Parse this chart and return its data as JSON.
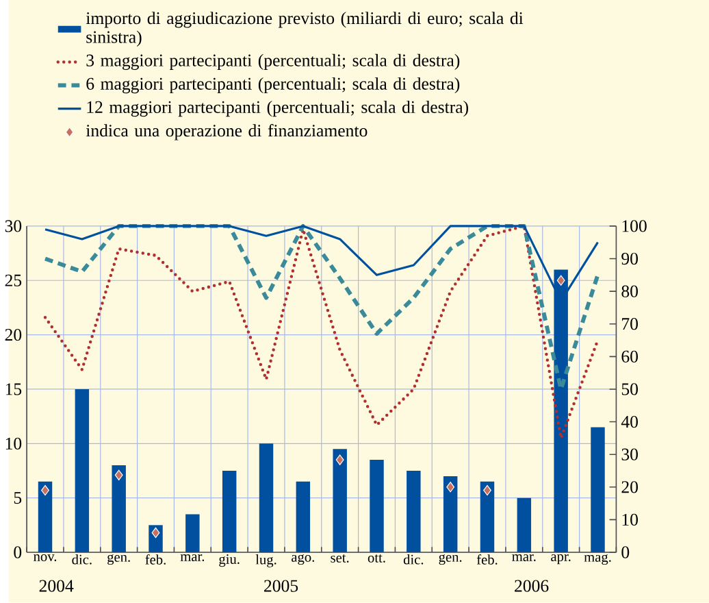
{
  "chart_data": {
    "type": "bar",
    "categories": [
      "nov.",
      "dic.",
      "gen.",
      "feb.",
      "mar.",
      "giu.",
      "lug.",
      "ago.",
      "set.",
      "ott.",
      "dic.",
      "gen.",
      "feb.",
      "mar.",
      "apr.",
      "mag."
    ],
    "series": [
      {
        "name": "importo di aggiudicazione previsto (miliardi di euro; scala di sinistra)",
        "color": "#0050a0",
        "values": [
          6.5,
          15,
          8,
          2.5,
          3.5,
          7.5,
          10,
          6.5,
          9.5,
          8.5,
          7.5,
          7,
          6.5,
          5,
          26,
          11.5
        ]
      },
      {
        "name": "3 maggiori partecipanti (percentuali; scala di destra)",
        "type": "line",
        "axis": "y2",
        "line_style": "dotted",
        "color": "#b03030",
        "values": [
          72,
          56,
          93,
          91,
          80,
          83,
          53,
          99,
          62,
          39,
          50,
          80,
          97,
          100,
          35,
          65
        ]
      },
      {
        "name": "6 maggiori partecipanti (percentuali; scala di destra)",
        "type": "line",
        "axis": "y2",
        "line_style": "dashed",
        "color": "#3a8a9a",
        "values": [
          90,
          86,
          100,
          100,
          100,
          100,
          78,
          100,
          84,
          67,
          78,
          93,
          100,
          100,
          50,
          85
        ]
      },
      {
        "name": "12 maggiori partecipanti (percentuali; scala di destra)",
        "type": "line",
        "axis": "y2",
        "line_style": "solid",
        "color": "#0050a0",
        "values": [
          99,
          96,
          100,
          100,
          100,
          100,
          97,
          100,
          96,
          85,
          88,
          100,
          100,
          100,
          77,
          95
        ]
      },
      {
        "name": "indica una operazione di finanziamento",
        "type": "scatter",
        "marker": "diamond",
        "color": "#c87060",
        "values": [
          5.7,
          null,
          7.1,
          1.8,
          null,
          null,
          null,
          null,
          8.5,
          null,
          null,
          6.0,
          5.7,
          null,
          25,
          null
        ]
      }
    ],
    "ylim": [
      0,
      30
    ],
    "yticks": [
      0,
      5,
      10,
      15,
      20,
      25,
      30
    ],
    "y2lim": [
      0,
      100
    ],
    "y2ticks": [
      0,
      10,
      20,
      30,
      40,
      50,
      60,
      70,
      80,
      90,
      100
    ],
    "grid": true,
    "legend": "top",
    "annotations": [
      "2004",
      "2005",
      "2006"
    ]
  }
}
